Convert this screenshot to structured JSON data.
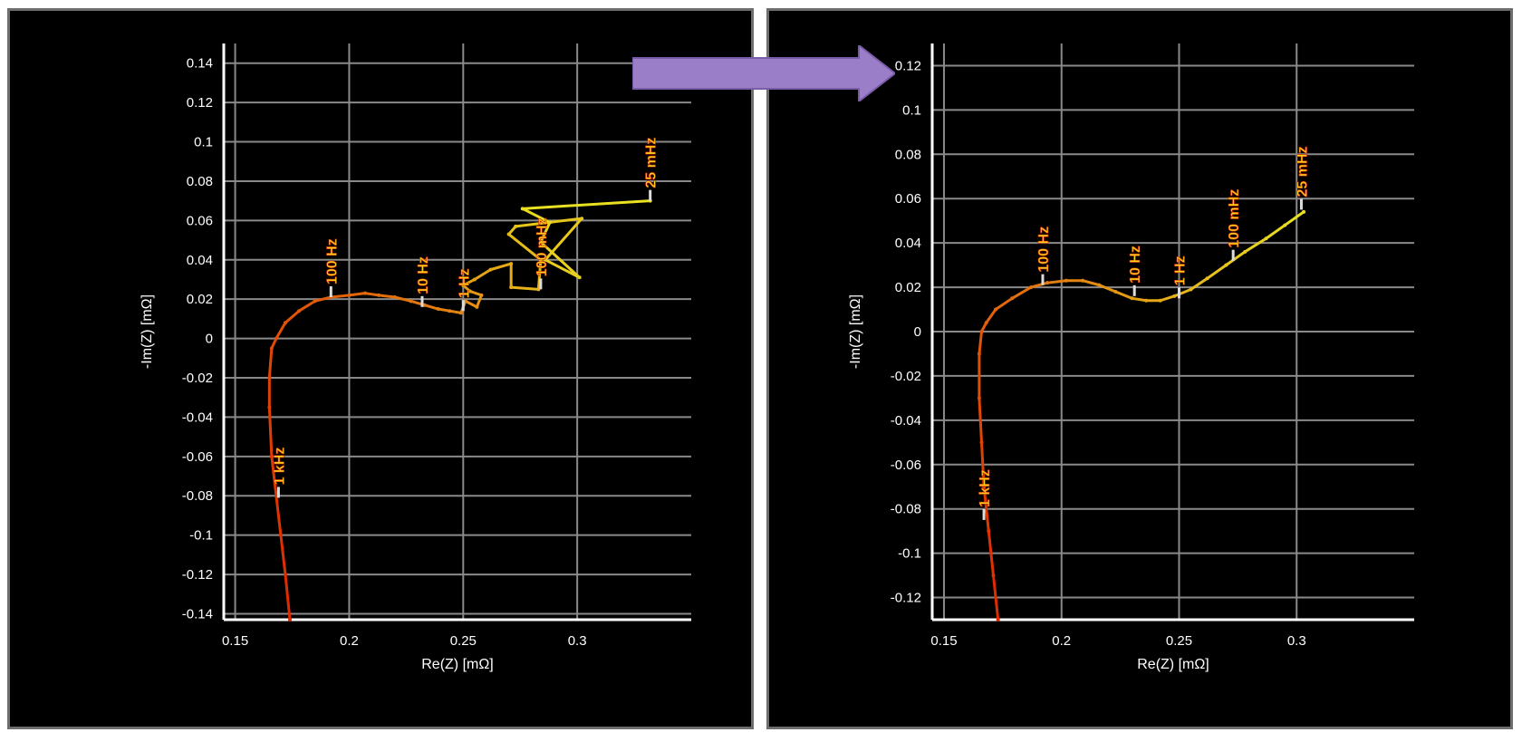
{
  "arrow": {
    "color": "#9b7ec8",
    "edge_color": "#7a5ba8"
  },
  "colors": {
    "grid": "#8a8a8a",
    "axis": "#ffffff",
    "curve_low": "#e02a00",
    "curve_high": "#e8e020",
    "label_fill": "#ffd21a",
    "label_stroke": "#d02000"
  },
  "chart_data": [
    {
      "type": "line",
      "title": "",
      "xlabel": "Re(Z) [mΩ]",
      "ylabel": "-Im(Z) [mΩ]",
      "xlim": [
        0.145,
        0.35
      ],
      "ylim": [
        -0.143,
        0.15
      ],
      "xticks": [
        0.15,
        0.2,
        0.25,
        0.3
      ],
      "xtick_labels": [
        "0.15",
        "0.2",
        "0.25",
        "0.3"
      ],
      "yticks": [
        0.14,
        0.12,
        0.1,
        0.08,
        0.06,
        0.04,
        0.02,
        0,
        -0.02,
        -0.04,
        -0.06,
        -0.08,
        -0.1,
        -0.12,
        -0.14
      ],
      "ytick_labels": [
        "0.14",
        "0.12",
        "0.1",
        "0.08",
        "0.06",
        "0.04",
        "0.02",
        "0",
        "-0.02",
        "-0.04",
        "-0.06",
        "-0.08",
        "-0.1",
        "-0.12",
        "-0.14"
      ],
      "grid": true,
      "series": [
        {
          "x": [
            0.174,
            0.172,
            0.17,
            0.168,
            0.166,
            0.165,
            0.165,
            0.166,
            0.168,
            0.172,
            0.178,
            0.185,
            0.192,
            0.2,
            0.207,
            0.213,
            0.22,
            0.227,
            0.233,
            0.239,
            0.244,
            0.249,
            0.251,
            0.256,
            0.258,
            0.253,
            0.25,
            0.255,
            0.262,
            0.271,
            0.271,
            0.283,
            0.284,
            0.27,
            0.273,
            0.302,
            0.286,
            0.301,
            0.284,
            0.288,
            0.276,
            0.332
          ],
          "y": [
            -0.143,
            -0.12,
            -0.1,
            -0.08,
            -0.06,
            -0.035,
            -0.02,
            -0.005,
            0.0,
            0.008,
            0.014,
            0.019,
            0.021,
            0.022,
            0.023,
            0.022,
            0.021,
            0.019,
            0.017,
            0.015,
            0.014,
            0.013,
            0.019,
            0.016,
            0.022,
            0.024,
            0.027,
            0.03,
            0.035,
            0.038,
            0.026,
            0.025,
            0.04,
            0.053,
            0.057,
            0.061,
            0.04,
            0.031,
            0.049,
            0.059,
            0.066,
            0.07
          ]
        }
      ],
      "annotations": [
        {
          "text": "1 kHz",
          "x": 0.169,
          "y": -0.081
        },
        {
          "text": "100 Hz",
          "x": 0.192,
          "y": 0.021
        },
        {
          "text": "10 Hz",
          "x": 0.232,
          "y": 0.016
        },
        {
          "text": "1 Hz",
          "x": 0.25,
          "y": 0.014
        },
        {
          "text": "100 mHz",
          "x": 0.284,
          "y": 0.025
        },
        {
          "text": "25 mHz",
          "x": 0.332,
          "y": 0.07
        }
      ]
    },
    {
      "type": "line",
      "title": "",
      "xlabel": "Re(Z) [mΩ]",
      "ylabel": "-Im(Z) [mΩ]",
      "xlim": [
        0.145,
        0.35
      ],
      "ylim": [
        -0.13,
        0.13
      ],
      "xticks": [
        0.15,
        0.2,
        0.25,
        0.3
      ],
      "xtick_labels": [
        "0.15",
        "0.2",
        "0.25",
        "0.3"
      ],
      "yticks": [
        0.12,
        0.1,
        0.08,
        0.06,
        0.04,
        0.02,
        0,
        -0.02,
        -0.04,
        -0.06,
        -0.08,
        -0.1,
        -0.12
      ],
      "ytick_labels": [
        "0.12",
        "0.1",
        "0.08",
        "0.06",
        "0.04",
        "0.02",
        "0",
        "-0.02",
        "-0.04",
        "-0.06",
        "-0.08",
        "-0.1",
        "-0.12"
      ],
      "grid": true,
      "series": [
        {
          "x": [
            0.173,
            0.171,
            0.169,
            0.167,
            0.166,
            0.165,
            0.165,
            0.166,
            0.168,
            0.172,
            0.179,
            0.187,
            0.194,
            0.202,
            0.209,
            0.216,
            0.223,
            0.23,
            0.236,
            0.242,
            0.248,
            0.255,
            0.262,
            0.27,
            0.278,
            0.287,
            0.295,
            0.303
          ],
          "y": [
            -0.13,
            -0.11,
            -0.09,
            -0.07,
            -0.05,
            -0.03,
            -0.01,
            0.0,
            0.004,
            0.01,
            0.015,
            0.02,
            0.022,
            0.023,
            0.023,
            0.021,
            0.018,
            0.015,
            0.014,
            0.014,
            0.016,
            0.019,
            0.024,
            0.03,
            0.036,
            0.042,
            0.048,
            0.054
          ]
        }
      ],
      "annotations": [
        {
          "text": "1 kHz",
          "x": 0.167,
          "y": -0.085
        },
        {
          "text": "100 Hz",
          "x": 0.192,
          "y": 0.021
        },
        {
          "text": "10 Hz",
          "x": 0.231,
          "y": 0.016
        },
        {
          "text": "1 Hz",
          "x": 0.25,
          "y": 0.015
        },
        {
          "text": "100 mHz",
          "x": 0.273,
          "y": 0.032
        },
        {
          "text": "25 mHz",
          "x": 0.302,
          "y": 0.055
        }
      ]
    }
  ]
}
